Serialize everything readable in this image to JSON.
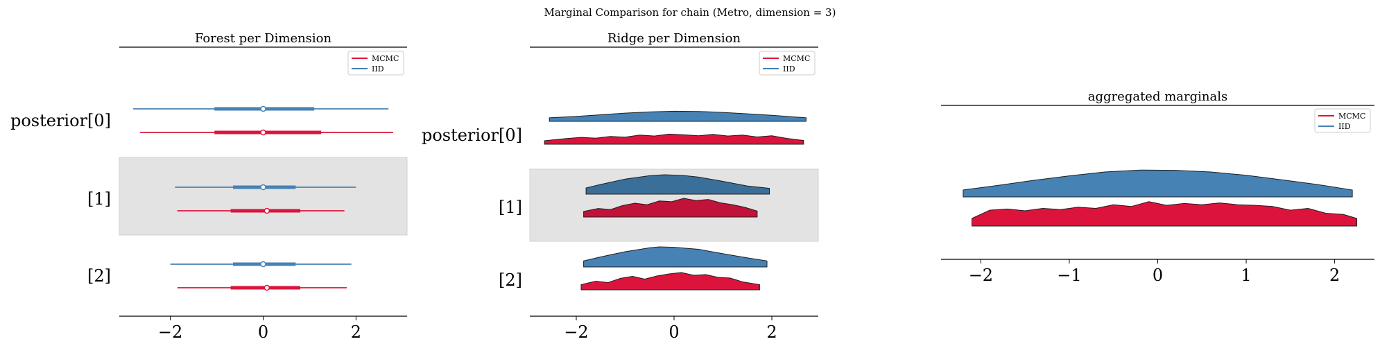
{
  "suptitle": "Marginal Comparison for chain (Metro, dimension = 3)",
  "colors": {
    "mcmc": "#dc143c",
    "mcmc_dark": "#c1123a",
    "iid": "#4682b4",
    "iid_dark": "#3a6f99",
    "band": "#e3e3e3"
  },
  "legend": [
    "MCMC",
    "IID"
  ],
  "chart_data": [
    {
      "type": "forest",
      "title": "Forest per Dimension",
      "y_labels": [
        "posterior[0]",
        "[1]",
        "[2]"
      ],
      "xlim": [
        -3.1,
        3.1
      ],
      "xticks": [
        -2,
        0,
        2
      ],
      "xtick_labels": [
        "−2",
        "0",
        "2"
      ],
      "series": [
        {
          "name": "IID",
          "rows": [
            {
              "hdi_low": -2.8,
              "hdi_high": 2.7,
              "iqr_low": -1.05,
              "iqr_high": 1.1,
              "median": 0.0
            },
            {
              "hdi_low": -1.9,
              "hdi_high": 2.0,
              "iqr_low": -0.65,
              "iqr_high": 0.7,
              "median": 0.0
            },
            {
              "hdi_low": -2.0,
              "hdi_high": 1.9,
              "iqr_low": -0.65,
              "iqr_high": 0.7,
              "median": 0.0
            }
          ]
        },
        {
          "name": "MCMC",
          "rows": [
            {
              "hdi_low": -2.65,
              "hdi_high": 2.8,
              "iqr_low": -1.05,
              "iqr_high": 1.25,
              "median": 0.0
            },
            {
              "hdi_low": -1.85,
              "hdi_high": 1.75,
              "iqr_low": -0.7,
              "iqr_high": 0.8,
              "median": 0.08
            },
            {
              "hdi_low": -1.85,
              "hdi_high": 1.8,
              "iqr_low": -0.7,
              "iqr_high": 0.8,
              "median": 0.08
            }
          ]
        }
      ]
    },
    {
      "type": "ridge",
      "title": "Ridge per Dimension",
      "y_labels": [
        "posterior[0]",
        "[1]",
        "[2]"
      ],
      "xlim": [
        -2.95,
        2.95
      ],
      "xticks": [
        -2,
        0,
        2
      ],
      "xtick_labels": [
        "−2",
        "0",
        "2"
      ],
      "series": [
        {
          "name": "IID",
          "rows": [
            {
              "x": [
                -2.55,
                -2.0,
                -1.5,
                -1.0,
                -0.5,
                0.0,
                0.5,
                1.0,
                1.5,
                2.0,
                2.7
              ],
              "y": [
                0.3,
                0.42,
                0.56,
                0.7,
                0.8,
                0.86,
                0.84,
                0.76,
                0.64,
                0.52,
                0.3
              ]
            },
            {
              "x": [
                -1.8,
                -1.5,
                -1.0,
                -0.5,
                -0.2,
                0.2,
                0.5,
                1.0,
                1.5,
                1.95
              ],
              "y": [
                0.32,
                0.5,
                0.78,
                0.95,
                1.0,
                0.96,
                0.88,
                0.66,
                0.42,
                0.3
              ]
            },
            {
              "x": [
                -1.85,
                -1.5,
                -1.0,
                -0.5,
                -0.3,
                0.0,
                0.5,
                1.0,
                1.5,
                1.9
              ],
              "y": [
                0.3,
                0.5,
                0.76,
                0.95,
                1.0,
                0.98,
                0.88,
                0.66,
                0.45,
                0.3
              ]
            }
          ]
        },
        {
          "name": "MCMC",
          "rows": [
            {
              "x": [
                -2.65,
                -2.2,
                -1.9,
                -1.6,
                -1.3,
                -1.0,
                -0.7,
                -0.4,
                -0.1,
                0.2,
                0.5,
                0.8,
                1.1,
                1.4,
                1.7,
                2.0,
                2.3,
                2.65
              ],
              "y": [
                0.3,
                0.48,
                0.58,
                0.52,
                0.66,
                0.6,
                0.78,
                0.7,
                0.86,
                0.8,
                0.72,
                0.84,
                0.7,
                0.78,
                0.62,
                0.72,
                0.5,
                0.32
              ]
            },
            {
              "x": [
                -1.85,
                -1.55,
                -1.3,
                -1.05,
                -0.8,
                -0.55,
                -0.3,
                -0.05,
                0.2,
                0.45,
                0.7,
                0.95,
                1.2,
                1.45,
                1.7
              ],
              "y": [
                0.3,
                0.46,
                0.4,
                0.62,
                0.74,
                0.66,
                0.86,
                0.82,
                1.0,
                0.88,
                0.94,
                0.76,
                0.66,
                0.52,
                0.32
              ]
            },
            {
              "x": [
                -1.9,
                -1.6,
                -1.35,
                -1.1,
                -0.85,
                -0.6,
                -0.35,
                -0.1,
                0.15,
                0.4,
                0.65,
                0.9,
                1.15,
                1.4,
                1.75
              ],
              "y": [
                0.3,
                0.5,
                0.42,
                0.66,
                0.78,
                0.62,
                0.8,
                0.92,
                1.0,
                0.84,
                0.88,
                0.72,
                0.68,
                0.46,
                0.3
              ]
            }
          ]
        }
      ]
    },
    {
      "type": "ridge",
      "title": "aggregated marginals",
      "xlim": [
        -2.45,
        2.45
      ],
      "xticks": [
        -2,
        -1,
        0,
        1,
        2
      ],
      "xtick_labels": [
        "−2",
        "−1",
        "0",
        "1",
        "2"
      ],
      "series": [
        {
          "name": "IID",
          "x": [
            -2.2,
            -1.8,
            -1.4,
            -1.0,
            -0.6,
            -0.2,
            0.2,
            0.6,
            1.0,
            1.4,
            1.8,
            2.2
          ],
          "y": [
            0.25,
            0.42,
            0.6,
            0.76,
            0.9,
            0.97,
            0.96,
            0.9,
            0.78,
            0.62,
            0.45,
            0.25
          ]
        },
        {
          "name": "MCMC",
          "x": [
            -2.1,
            -1.9,
            -1.7,
            -1.5,
            -1.3,
            -1.1,
            -0.9,
            -0.7,
            -0.5,
            -0.3,
            -0.1,
            0.1,
            0.3,
            0.5,
            0.7,
            0.9,
            1.1,
            1.3,
            1.5,
            1.7,
            1.9,
            2.1,
            2.25
          ],
          "y": [
            0.25,
            0.52,
            0.56,
            0.5,
            0.58,
            0.54,
            0.62,
            0.58,
            0.7,
            0.64,
            0.8,
            0.68,
            0.74,
            0.7,
            0.76,
            0.7,
            0.68,
            0.64,
            0.52,
            0.58,
            0.42,
            0.38,
            0.25
          ]
        }
      ]
    }
  ]
}
